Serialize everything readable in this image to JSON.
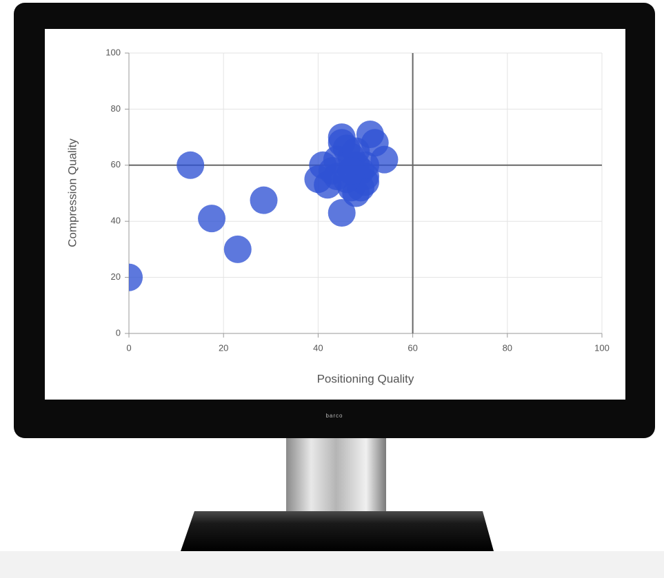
{
  "monitor_brand": "barco",
  "chart_data": {
    "type": "scatter",
    "x_label": "Positioning Quality",
    "y_label": "Compression Quality",
    "x": [
      0,
      13,
      17.5,
      23,
      28.5,
      45,
      41,
      40,
      42,
      43,
      44,
      45,
      45,
      46,
      47,
      48,
      49,
      50,
      47,
      48,
      49,
      50,
      46,
      51,
      52,
      54,
      50,
      44,
      48,
      47
    ],
    "y": [
      20,
      60,
      41,
      30,
      47.5,
      43,
      60,
      55,
      53,
      58,
      56,
      70,
      68,
      66,
      63,
      60,
      58,
      56,
      52,
      50,
      52,
      54,
      55,
      71,
      68,
      62,
      60,
      62,
      65,
      58
    ],
    "color": "#2f52d4",
    "xlim": [
      0,
      100
    ],
    "ylim": [
      0,
      100
    ],
    "xticks": [
      0,
      20,
      40,
      60,
      80,
      100
    ],
    "yticks": [
      0,
      20,
      40,
      60,
      80,
      100
    ],
    "grid": true,
    "xline": 60,
    "yline": 60
  }
}
